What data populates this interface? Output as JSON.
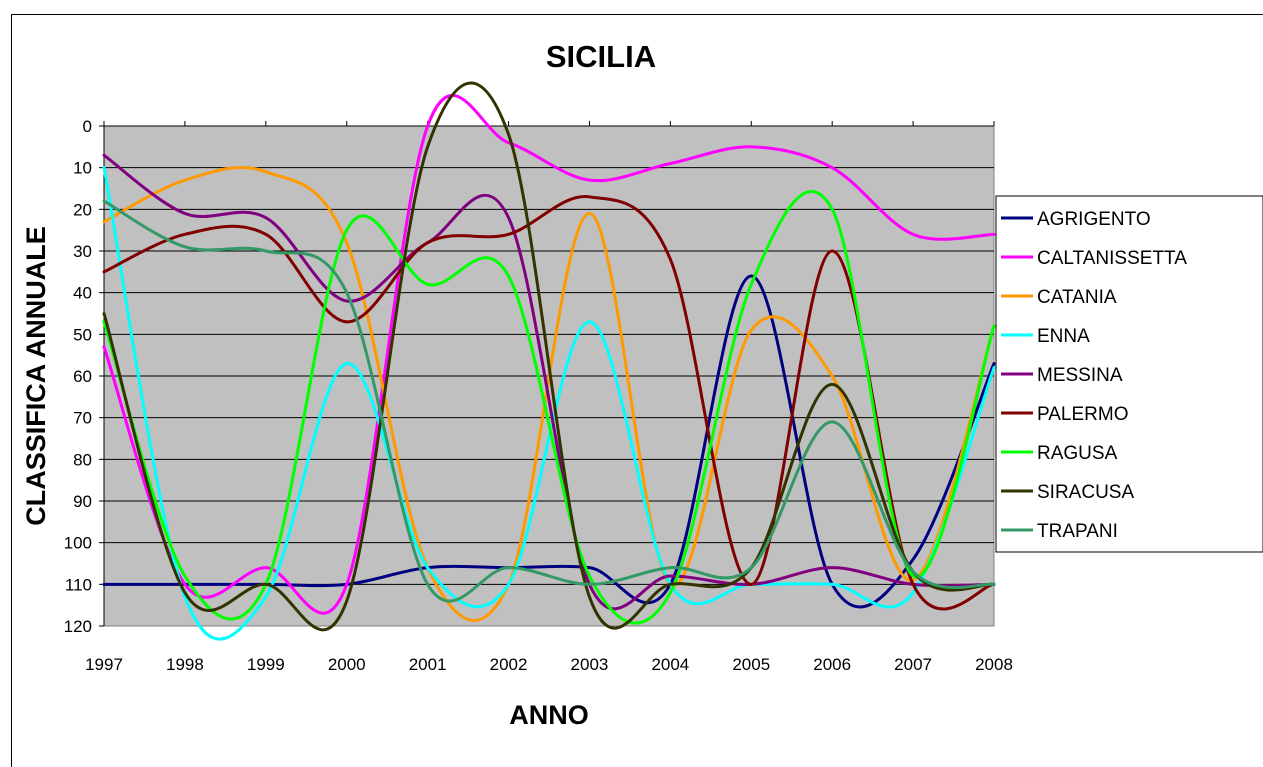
{
  "chart_data": {
    "type": "line",
    "title": "SICILIA",
    "xlabel": "ANNO",
    "ylabel": "CLASSIFICA ANNUALE",
    "x": [
      1997,
      1998,
      1999,
      2000,
      2001,
      2002,
      2003,
      2004,
      2005,
      2006,
      2007,
      2008
    ],
    "xlim": [
      1997,
      2008
    ],
    "ylim": [
      0,
      120
    ],
    "y_reversed": true,
    "y_ticks": [
      0,
      10,
      20,
      30,
      40,
      50,
      60,
      70,
      80,
      90,
      100,
      110,
      120
    ],
    "grid": "horizontal",
    "plot_background": "#c0c0c0",
    "legend_position": "right",
    "series": [
      {
        "name": "AGRIGENTO",
        "color": "#000080",
        "values": [
          110,
          110,
          110,
          110,
          106,
          106,
          106,
          110,
          36,
          110,
          104,
          57
        ]
      },
      {
        "name": "CALTANISSETTA",
        "color": "#ff00ff",
        "values": [
          53,
          110,
          106,
          110,
          0,
          4,
          13,
          9,
          5,
          10,
          26,
          26
        ]
      },
      {
        "name": "CATANIA",
        "color": "#ff9900",
        "values": [
          23,
          13,
          11,
          28,
          106,
          110,
          21,
          110,
          49,
          60,
          109,
          48
        ]
      },
      {
        "name": "ENNA",
        "color": "#00ffff",
        "values": [
          10,
          113,
          113,
          57,
          106,
          110,
          47,
          110,
          110,
          110,
          112,
          58
        ]
      },
      {
        "name": "MESSINA",
        "color": "#800080",
        "values": [
          7,
          21,
          22,
          42,
          28,
          22,
          110,
          108,
          110,
          106,
          110,
          110
        ]
      },
      {
        "name": "PALERMO",
        "color": "#800000",
        "values": [
          35,
          26,
          26,
          47,
          28,
          26,
          17,
          32,
          110,
          30,
          110,
          110
        ]
      },
      {
        "name": "RAGUSA",
        "color": "#00ff00",
        "values": [
          47,
          108,
          110,
          25,
          38,
          36,
          108,
          112,
          38,
          20,
          108,
          48
        ]
      },
      {
        "name": "SIRACUSA",
        "color": "#333300",
        "values": [
          45,
          112,
          110,
          114,
          5,
          2,
          113,
          110,
          106,
          62,
          107,
          110
        ]
      },
      {
        "name": "TRAPANI",
        "color": "#339966",
        "values": [
          18,
          29,
          30,
          40,
          110,
          106,
          110,
          106,
          106,
          71,
          107,
          110
        ]
      }
    ]
  }
}
